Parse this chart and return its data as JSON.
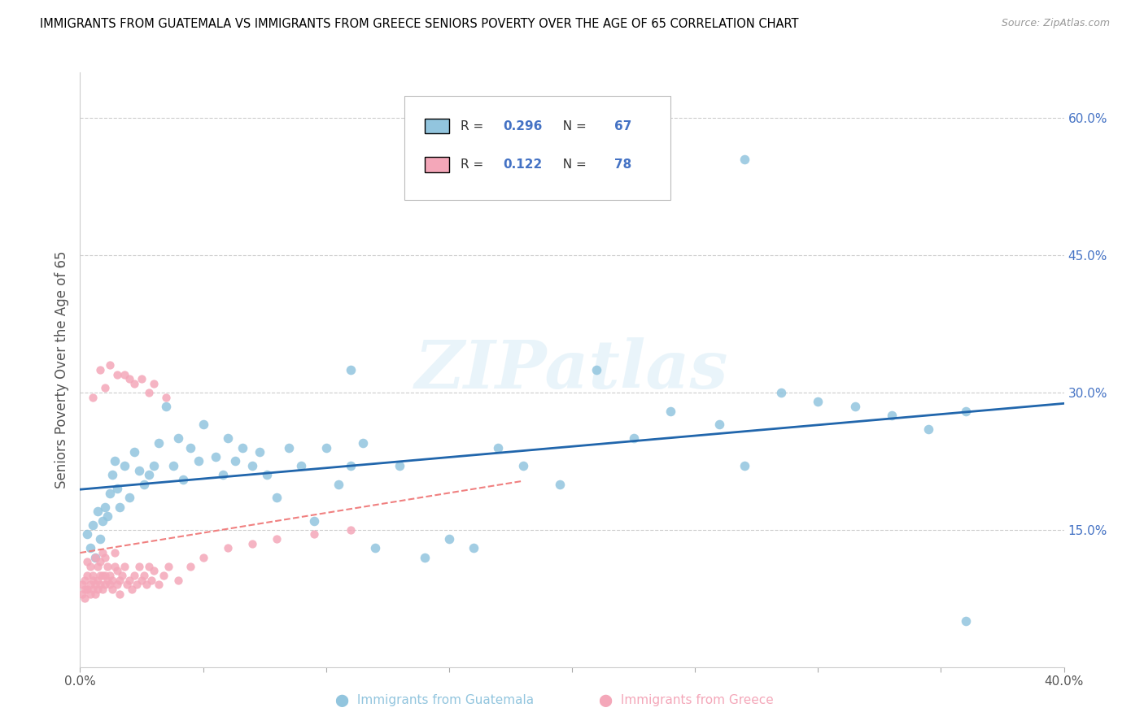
{
  "title": "IMMIGRANTS FROM GUATEMALA VS IMMIGRANTS FROM GREECE SENIORS POVERTY OVER THE AGE OF 65 CORRELATION CHART",
  "source": "Source: ZipAtlas.com",
  "ylabel": "Seniors Poverty Over the Age of 65",
  "xlim": [
    0.0,
    0.4
  ],
  "ylim": [
    0.0,
    0.65
  ],
  "xtick_positions": [
    0.0,
    0.05,
    0.1,
    0.15,
    0.2,
    0.25,
    0.3,
    0.35,
    0.4
  ],
  "xticklabels": [
    "0.0%",
    "",
    "",
    "",
    "",
    "",
    "",
    "",
    "40.0%"
  ],
  "yticks_right": [
    0.0,
    0.15,
    0.3,
    0.45,
    0.6
  ],
  "yticklabels_right": [
    "",
    "15.0%",
    "30.0%",
    "45.0%",
    "60.0%"
  ],
  "guatemala_color": "#92C5DE",
  "greece_color": "#F4A7B9",
  "guatemala_line_color": "#2166AC",
  "greece_line_color": "#F08080",
  "R_guatemala": 0.296,
  "N_guatemala": 67,
  "R_greece": 0.122,
  "N_greece": 78,
  "watermark": "ZIPatlas",
  "guatemala_x": [
    0.003,
    0.004,
    0.005,
    0.006,
    0.007,
    0.008,
    0.009,
    0.01,
    0.011,
    0.012,
    0.013,
    0.014,
    0.015,
    0.016,
    0.018,
    0.02,
    0.022,
    0.024,
    0.026,
    0.028,
    0.03,
    0.032,
    0.035,
    0.038,
    0.04,
    0.042,
    0.045,
    0.048,
    0.05,
    0.055,
    0.058,
    0.06,
    0.063,
    0.066,
    0.07,
    0.073,
    0.076,
    0.08,
    0.085,
    0.09,
    0.095,
    0.1,
    0.105,
    0.11,
    0.115,
    0.12,
    0.13,
    0.14,
    0.15,
    0.16,
    0.17,
    0.18,
    0.195,
    0.21,
    0.225,
    0.24,
    0.26,
    0.27,
    0.285,
    0.3,
    0.315,
    0.33,
    0.345,
    0.36,
    0.27,
    0.11,
    0.36
  ],
  "guatemala_y": [
    0.145,
    0.13,
    0.155,
    0.12,
    0.17,
    0.14,
    0.16,
    0.175,
    0.165,
    0.19,
    0.21,
    0.225,
    0.195,
    0.175,
    0.22,
    0.185,
    0.235,
    0.215,
    0.2,
    0.21,
    0.22,
    0.245,
    0.285,
    0.22,
    0.25,
    0.205,
    0.24,
    0.225,
    0.265,
    0.23,
    0.21,
    0.25,
    0.225,
    0.24,
    0.22,
    0.235,
    0.21,
    0.185,
    0.24,
    0.22,
    0.16,
    0.24,
    0.2,
    0.22,
    0.245,
    0.13,
    0.22,
    0.12,
    0.14,
    0.13,
    0.24,
    0.22,
    0.2,
    0.325,
    0.25,
    0.28,
    0.265,
    0.22,
    0.3,
    0.29,
    0.285,
    0.275,
    0.26,
    0.05,
    0.555,
    0.325,
    0.28
  ],
  "greece_x": [
    0.001,
    0.001,
    0.002,
    0.002,
    0.002,
    0.003,
    0.003,
    0.003,
    0.004,
    0.004,
    0.004,
    0.005,
    0.005,
    0.005,
    0.006,
    0.006,
    0.006,
    0.007,
    0.007,
    0.007,
    0.008,
    0.008,
    0.008,
    0.009,
    0.009,
    0.009,
    0.01,
    0.01,
    0.01,
    0.011,
    0.011,
    0.012,
    0.012,
    0.013,
    0.013,
    0.014,
    0.014,
    0.015,
    0.015,
    0.016,
    0.016,
    0.017,
    0.018,
    0.019,
    0.02,
    0.021,
    0.022,
    0.023,
    0.024,
    0.025,
    0.026,
    0.027,
    0.028,
    0.029,
    0.03,
    0.032,
    0.034,
    0.036,
    0.04,
    0.045,
    0.05,
    0.06,
    0.07,
    0.08,
    0.095,
    0.11,
    0.03,
    0.015,
    0.025,
    0.035,
    0.012,
    0.008,
    0.018,
    0.022,
    0.028,
    0.005,
    0.01,
    0.02
  ],
  "greece_y": [
    0.09,
    0.08,
    0.095,
    0.075,
    0.085,
    0.1,
    0.085,
    0.115,
    0.09,
    0.08,
    0.11,
    0.095,
    0.085,
    0.1,
    0.08,
    0.12,
    0.09,
    0.095,
    0.085,
    0.11,
    0.1,
    0.09,
    0.115,
    0.085,
    0.1,
    0.125,
    0.09,
    0.1,
    0.12,
    0.095,
    0.11,
    0.09,
    0.1,
    0.085,
    0.095,
    0.11,
    0.125,
    0.09,
    0.105,
    0.08,
    0.095,
    0.1,
    0.11,
    0.09,
    0.095,
    0.085,
    0.1,
    0.09,
    0.11,
    0.095,
    0.1,
    0.09,
    0.11,
    0.095,
    0.105,
    0.09,
    0.1,
    0.11,
    0.095,
    0.11,
    0.12,
    0.13,
    0.135,
    0.14,
    0.145,
    0.15,
    0.31,
    0.32,
    0.315,
    0.295,
    0.33,
    0.325,
    0.32,
    0.31,
    0.3,
    0.295,
    0.305,
    0.315
  ]
}
